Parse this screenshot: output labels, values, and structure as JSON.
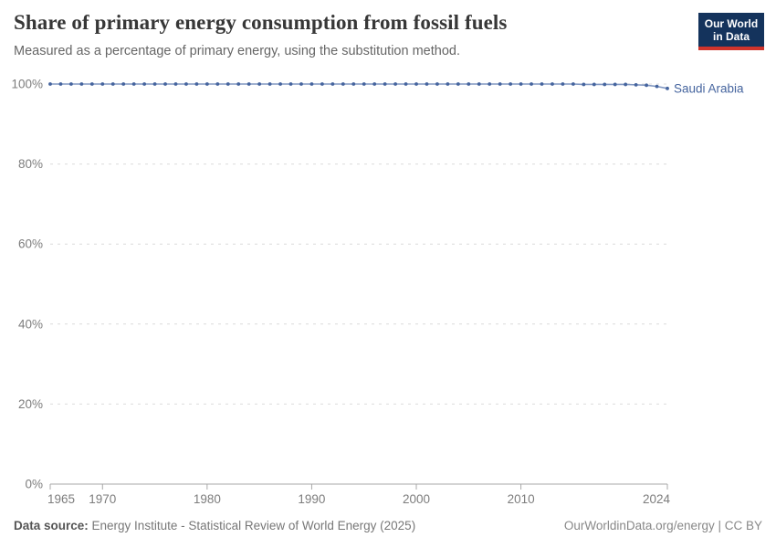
{
  "header": {
    "title": "Share of primary energy consumption from fossil fuels",
    "subtitle": "Measured as a percentage of primary energy, using the substitution method.",
    "logo": {
      "line1": "Our World",
      "line2": "in Data",
      "bg_color": "#14335c",
      "accent_color": "#d0342c"
    }
  },
  "footer": {
    "source_label": "Data source:",
    "source_value": " Energy Institute - Statistical Review of World Energy (2025)",
    "credit": "OurWorldinData.org/energy | CC BY"
  },
  "chart_data": {
    "type": "line",
    "title": "Share of primary energy consumption from fossil fuels",
    "subtitle": "Measured as a percentage of primary energy, using the substitution method.",
    "entity": "Saudi Arabia",
    "end_label": "Saudi Arabia",
    "xlabel": "",
    "ylabel": "",
    "xlim": [
      1965,
      2024
    ],
    "ylim": [
      0,
      100
    ],
    "grid": "horizontal-dashed",
    "legend_position": "end-of-line",
    "x": [
      1965,
      1966,
      1967,
      1968,
      1969,
      1970,
      1971,
      1972,
      1973,
      1974,
      1975,
      1976,
      1977,
      1978,
      1979,
      1980,
      1981,
      1982,
      1983,
      1984,
      1985,
      1986,
      1987,
      1988,
      1989,
      1990,
      1991,
      1992,
      1993,
      1994,
      1995,
      1996,
      1997,
      1998,
      1999,
      2000,
      2001,
      2002,
      2003,
      2004,
      2005,
      2006,
      2007,
      2008,
      2009,
      2010,
      2011,
      2012,
      2013,
      2014,
      2015,
      2016,
      2017,
      2018,
      2019,
      2020,
      2021,
      2022,
      2023,
      2024
    ],
    "series": [
      {
        "name": "Saudi Arabia",
        "color": "#45649e",
        "line_color": "#8097c1",
        "values": [
          100,
          100,
          100,
          100,
          100,
          100,
          100,
          100,
          100,
          100,
          100,
          100,
          100,
          100,
          100,
          100,
          100,
          100,
          100,
          100,
          100,
          100,
          100,
          100,
          100,
          100,
          100,
          100,
          100,
          100,
          100,
          100,
          100,
          100,
          100,
          100,
          100,
          100,
          100,
          100,
          100,
          100,
          100,
          100,
          100,
          100,
          100,
          100,
          100,
          100,
          100,
          99.9,
          99.9,
          99.9,
          99.9,
          99.9,
          99.8,
          99.7,
          99.4,
          98.9
        ]
      }
    ],
    "x_ticks": [
      {
        "v": 1965,
        "label": "1965"
      },
      {
        "v": 1970,
        "label": "1970"
      },
      {
        "v": 1980,
        "label": "1980"
      },
      {
        "v": 1990,
        "label": "1990"
      },
      {
        "v": 2000,
        "label": "2000"
      },
      {
        "v": 2010,
        "label": "2010"
      },
      {
        "v": 2024,
        "label": "2024"
      }
    ],
    "y_ticks": [
      {
        "v": 0,
        "label": "0%"
      },
      {
        "v": 20,
        "label": "20%"
      },
      {
        "v": 40,
        "label": "40%"
      },
      {
        "v": 60,
        "label": "60%"
      },
      {
        "v": 80,
        "label": "80%"
      },
      {
        "v": 100,
        "label": "100%"
      }
    ],
    "colors": {
      "gridline": "#dcdcdc",
      "axis": "#a8a8a8",
      "tick_label": "#7d7d7d"
    }
  }
}
